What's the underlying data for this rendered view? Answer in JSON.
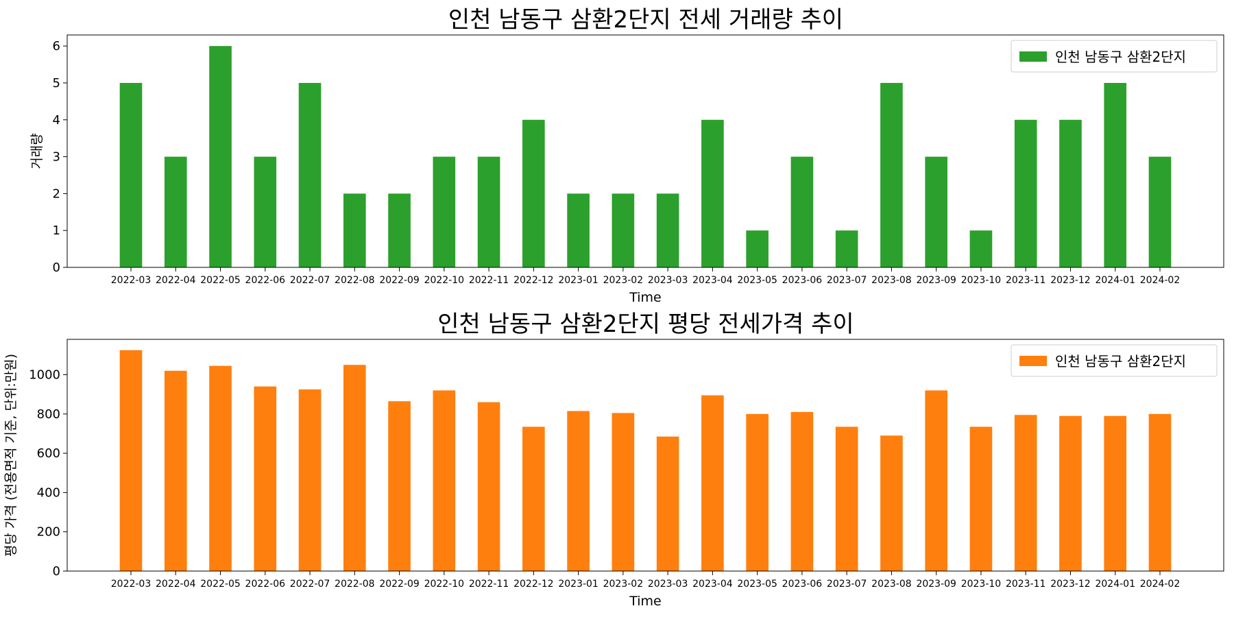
{
  "chart_data": [
    {
      "type": "bar",
      "title": "인천 남동구 삼환2단지 전세 거래량 추이",
      "xlabel": "Time",
      "ylabel": "거래량",
      "ylim": [
        0,
        6.3
      ],
      "yticks": [
        0,
        1,
        2,
        3,
        4,
        5,
        6
      ],
      "grid": false,
      "legend_position": "top-right",
      "categories": [
        "2022-03",
        "2022-04",
        "2022-05",
        "2022-06",
        "2022-07",
        "2022-08",
        "2022-09",
        "2022-10",
        "2022-11",
        "2022-12",
        "2023-01",
        "2023-02",
        "2023-03",
        "2023-04",
        "2023-05",
        "2023-06",
        "2023-07",
        "2023-08",
        "2023-09",
        "2023-10",
        "2023-11",
        "2023-12",
        "2024-01",
        "2024-02"
      ],
      "series": [
        {
          "name": "인천 남동구 삼환2단지",
          "color": "#2ca02c",
          "values": [
            5,
            3,
            6,
            3,
            5,
            2,
            2,
            3,
            3,
            4,
            2,
            2,
            2,
            4,
            1,
            3,
            1,
            5,
            3,
            1,
            4,
            4,
            5,
            3
          ]
        }
      ]
    },
    {
      "type": "bar",
      "title": "인천 남동구 삼환2단지 평당 전세가격 추이",
      "xlabel": "Time",
      "ylabel": "평당 가격 (전용면적 기준, 단위:만원)",
      "ylim": [
        0,
        1180
      ],
      "yticks": [
        0,
        200,
        400,
        600,
        800,
        1000
      ],
      "grid": false,
      "legend_position": "top-right",
      "categories": [
        "2022-03",
        "2022-04",
        "2022-05",
        "2022-06",
        "2022-07",
        "2022-08",
        "2022-09",
        "2022-10",
        "2022-11",
        "2022-12",
        "2023-01",
        "2023-02",
        "2023-03",
        "2023-04",
        "2023-05",
        "2023-06",
        "2023-07",
        "2023-08",
        "2023-09",
        "2023-10",
        "2023-11",
        "2023-12",
        "2024-01",
        "2024-02"
      ],
      "series": [
        {
          "name": "인천 남동구 삼환2단지",
          "color": "#ff7f0e",
          "values": [
            1125,
            1020,
            1045,
            940,
            925,
            1050,
            865,
            920,
            860,
            735,
            815,
            805,
            685,
            895,
            800,
            810,
            735,
            690,
            920,
            735,
            795,
            790,
            790,
            800
          ]
        }
      ]
    }
  ]
}
